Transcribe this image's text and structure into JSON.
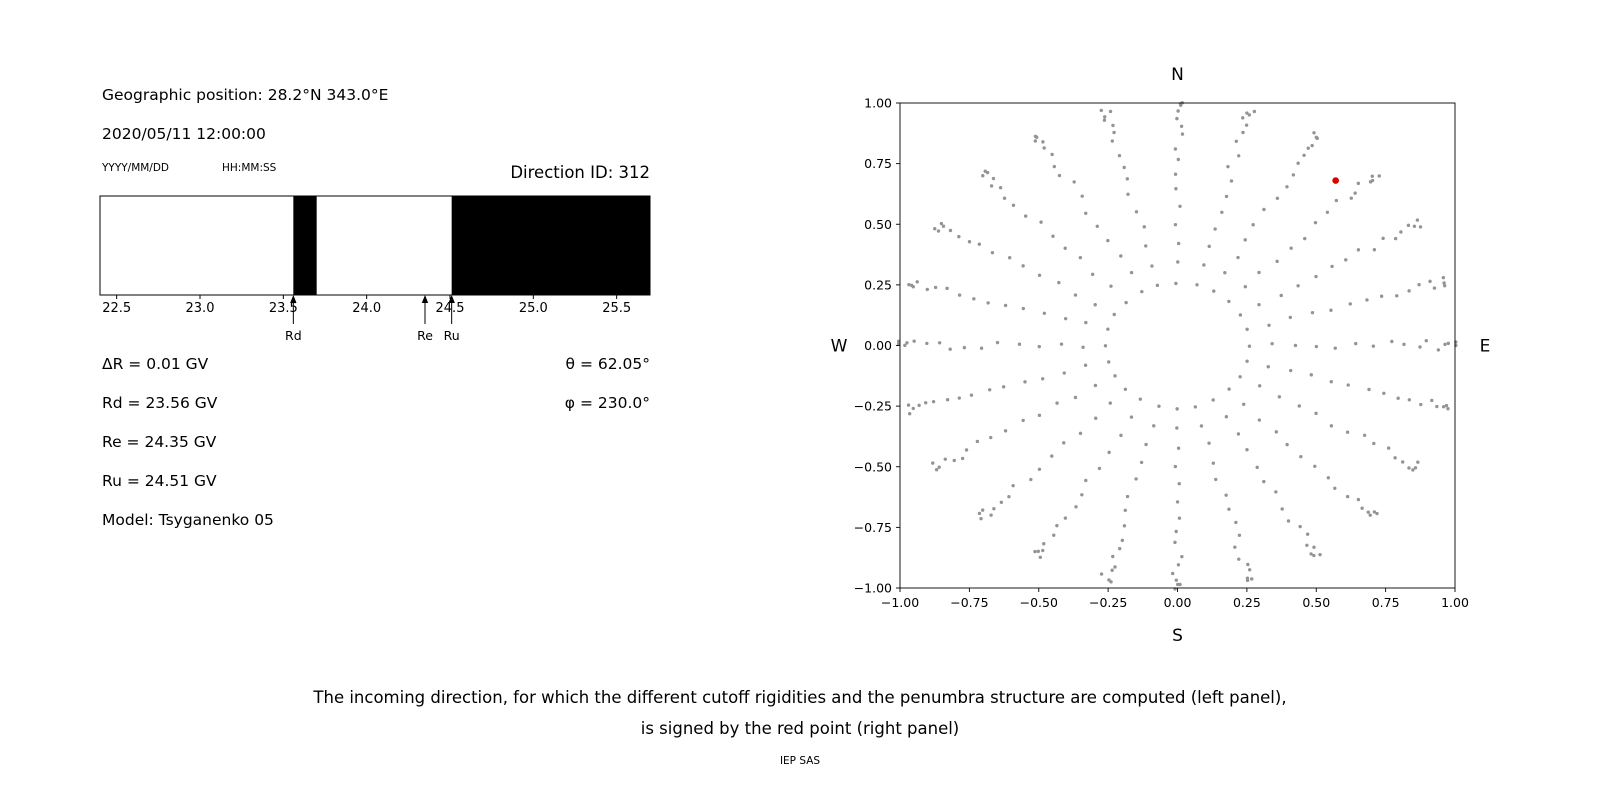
{
  "header": {
    "geo_position": "Geographic position: 28.2°N 343.0°E",
    "datetime": "2020/05/11 12:00:00",
    "date_format_label": "YYYY/MM/DD",
    "time_format_label": "HH:MM:SS",
    "direction_id": "Direction ID: 312"
  },
  "left_panel": {
    "lines": [
      "ΔR = 0.01 GV",
      "Rd = 23.56 GV",
      "Re = 24.35 GV",
      "Ru = 24.51 GV",
      "Model: Tsyganenko 05"
    ],
    "theta": "θ = 62.05°",
    "phi": "φ = 230.0°"
  },
  "chart_data": [
    {
      "type": "bar",
      "title": "",
      "x_range": [
        22.4,
        25.7
      ],
      "x_ticks": [
        22.5,
        23.0,
        23.5,
        24.0,
        24.5,
        25.0,
        25.5
      ],
      "forbidden_bands": [
        [
          23.56,
          23.7
        ],
        [
          24.51,
          25.7
        ]
      ],
      "band_color": "#000000",
      "markers": [
        {
          "label": "Rd",
          "x": 23.56
        },
        {
          "label": "Re",
          "x": 24.35
        },
        {
          "label": "Ru",
          "x": 24.51
        }
      ]
    },
    {
      "type": "scatter",
      "title": "",
      "xlim": [
        -1.0,
        1.0
      ],
      "ylim": [
        -1.0,
        1.0
      ],
      "x_ticks": [
        -1.0,
        -0.75,
        -0.5,
        -0.25,
        0.0,
        0.25,
        0.5,
        0.75,
        1.0
      ],
      "y_ticks": [
        -1.0,
        -0.75,
        -0.5,
        -0.25,
        0.0,
        0.25,
        0.5,
        0.75,
        1.0
      ],
      "compass_labels": {
        "top": "N",
        "bottom": "S",
        "left": "W",
        "right": "E"
      },
      "grid_points": {
        "azimuth_start_deg": 0,
        "azimuth_step_deg": 15,
        "azimuth_count": 24,
        "zenith_start_deg": 15,
        "zenith_step_deg": 5,
        "zenith_count": 16,
        "radius_rule": "sin(zenith)"
      },
      "dot_color": "#949494",
      "selected_point": {
        "x": 0.57,
        "y": 0.68,
        "color": "#e00000"
      }
    }
  ],
  "caption": {
    "line1": "The incoming direction, for which the different cutoff rigidities and the penumbra structure are computed (left panel),",
    "line2": "is signed by the red point (right panel)",
    "credit": "IEP SAS"
  }
}
